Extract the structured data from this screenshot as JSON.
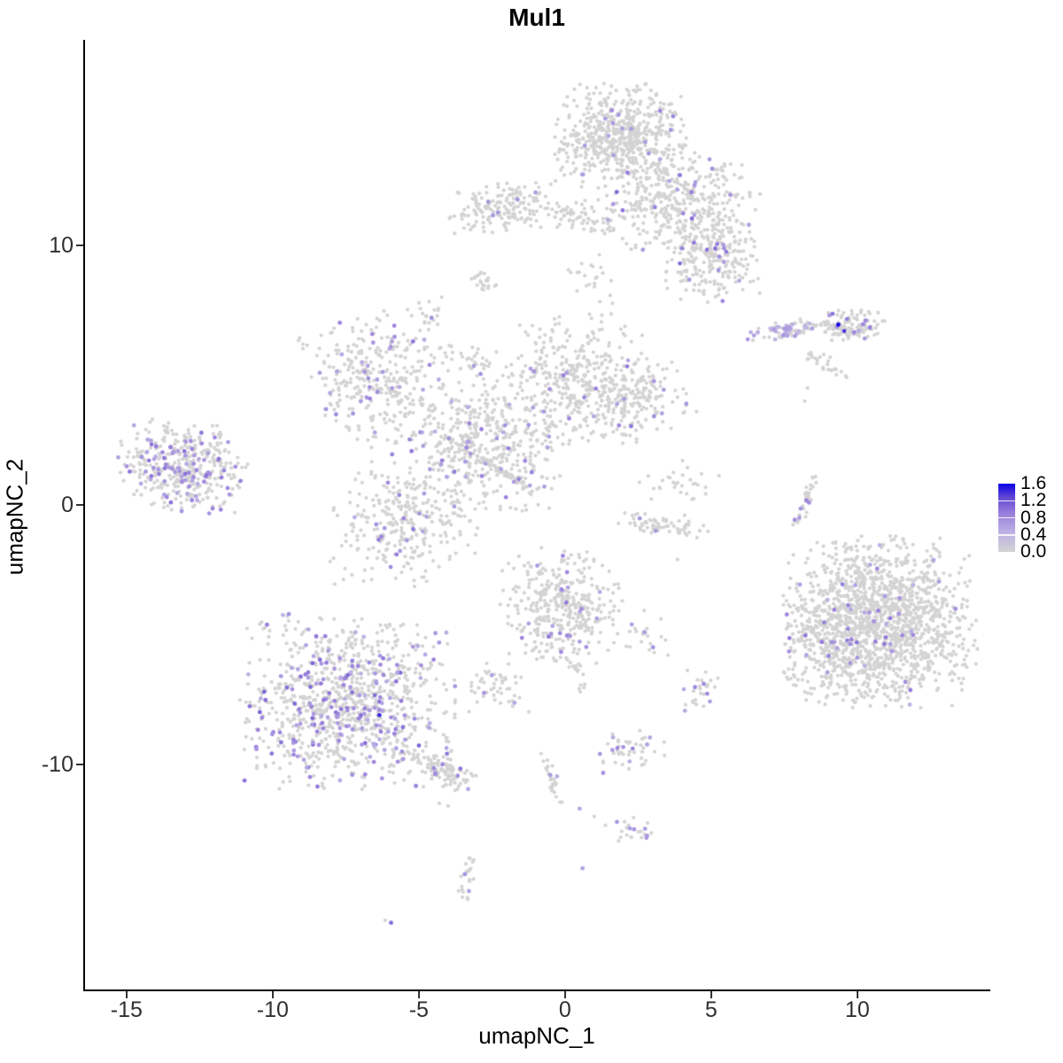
{
  "title": "Mul1",
  "axes": {
    "x_label": "umapNC_1",
    "y_label": "umapNC_2",
    "x_ticks": [
      -15,
      -10,
      -5,
      0,
      5,
      10
    ],
    "y_ticks": [
      -10,
      0,
      10
    ],
    "x_range": [
      -16.45,
      14.52
    ],
    "y_range": [
      -18.67,
      17.92
    ]
  },
  "legend": {
    "tick_labels": [
      "1.6",
      "1.2",
      "0.8",
      "0.4",
      "0.0"
    ],
    "tick_values": [
      1.6,
      1.2,
      0.8,
      0.4,
      0.0
    ],
    "vmax": 1.6,
    "low_color": "#d3d3d3",
    "high_color": "#0c00e8"
  },
  "chart_data": {
    "type": "scatter",
    "title": "Mul1",
    "xlabel": "umapNC_1",
    "ylabel": "umapNC_2",
    "grid": false,
    "legend_position": "right",
    "point_radius_base": 2.1,
    "point_radius_expr": 2.4,
    "base_color": "#d3d3d3",
    "color_stops": [
      [
        0,
        "#d3d3d3"
      ],
      [
        0.28,
        "#bdb2e4"
      ],
      [
        0.55,
        "#9b82dc"
      ],
      [
        0.8,
        "#6247d2"
      ],
      [
        1,
        "#0c00e8"
      ]
    ],
    "seed": 1234,
    "clusters": [
      {
        "id": "top-head",
        "cx": 1.9,
        "cy": 14.2,
        "sx": 1.05,
        "sy": 0.95,
        "rot": 0,
        "n": 600,
        "frac": 0.02,
        "vmin": 0.5,
        "vmax": 0.9
      },
      {
        "id": "top-body",
        "cx": 3.9,
        "cy": 11.6,
        "sx": 1.35,
        "sy": 1.05,
        "rot": -0.3,
        "n": 420,
        "frac": 0.05,
        "vmin": 0.5,
        "vmax": 1.1
      },
      {
        "id": "top-right-lobe",
        "cx": 5.1,
        "cy": 9.5,
        "sx": 0.8,
        "sy": 0.85,
        "rot": 0,
        "n": 220,
        "frac": 0.06,
        "vmin": 0.5,
        "vmax": 1.0
      },
      {
        "id": "top-left-arm",
        "cx": 0.7,
        "cy": 11.1,
        "sx": 0.75,
        "sy": 0.3,
        "rot": -0.15,
        "n": 70,
        "frac": 0.04,
        "vmin": 0.5,
        "vmax": 0.8
      },
      {
        "id": "below-head-sparse",
        "cx": 1.0,
        "cy": 8.9,
        "sx": 0.45,
        "sy": 0.6,
        "rot": 0,
        "n": 22,
        "frac": 0,
        "vmin": 0,
        "vmax": 0
      },
      {
        "id": "blob-nnw",
        "cx": -2.1,
        "cy": 11.5,
        "sx": 0.95,
        "sy": 0.45,
        "rot": 0.1,
        "n": 170,
        "frac": 0.015,
        "vmin": 0.6,
        "vmax": 0.8
      },
      {
        "id": "comma",
        "cx": -2.8,
        "cy": 8.6,
        "sx": 0.3,
        "sy": 0.14,
        "rot": -0.6,
        "n": 22,
        "frac": 0,
        "vmin": 0,
        "vmax": 0
      },
      {
        "id": "small-west",
        "cx": -4.6,
        "cy": 7.4,
        "sx": 0.38,
        "sy": 0.45,
        "rot": 0,
        "n": 20,
        "frac": 0.12,
        "vmin": 0.6,
        "vmax": 0.8
      },
      {
        "id": "nw-lobe",
        "cx": -6.6,
        "cy": 4.9,
        "sx": 1.0,
        "sy": 1.25,
        "rot": 0.35,
        "n": 300,
        "frac": 0.09,
        "vmin": 0.5,
        "vmax": 1.0
      },
      {
        "id": "nw-strand",
        "cx": -4.0,
        "cy": 5.8,
        "sx": 0.8,
        "sy": 0.25,
        "rot": -0.25,
        "n": 40,
        "frac": 0.06,
        "vmin": 0.5,
        "vmax": 0.8
      },
      {
        "id": "central-mass",
        "cx": -2.7,
        "cy": 2.5,
        "sx": 1.5,
        "sy": 1.4,
        "rot": 0,
        "n": 520,
        "frac": 0.05,
        "vmin": 0.45,
        "vmax": 0.95
      },
      {
        "id": "sw-lobe",
        "cx": -5.4,
        "cy": -0.8,
        "sx": 1.25,
        "sy": 1.15,
        "rot": 0,
        "n": 300,
        "frac": 0.08,
        "vmin": 0.5,
        "vmax": 1.0
      },
      {
        "id": "ne-lobe",
        "cx": 0.2,
        "cy": 4.9,
        "sx": 1.15,
        "sy": 1.15,
        "rot": 0,
        "n": 330,
        "frac": 0.05,
        "vmin": 0.5,
        "vmax": 1.0
      },
      {
        "id": "east-lobe",
        "cx": 2.2,
        "cy": 4.1,
        "sx": 0.95,
        "sy": 0.85,
        "rot": 0,
        "n": 200,
        "frac": 0.05,
        "vmin": 0.5,
        "vmax": 1.0
      },
      {
        "id": "streak",
        "cx": -2.1,
        "cy": 1.25,
        "sx": 0.62,
        "sy": 0.07,
        "rot": -0.6,
        "n": 45,
        "frac": 0.02,
        "vmin": 0.6,
        "vmax": 0.6
      },
      {
        "id": "far-left",
        "cx": -13.1,
        "cy": 1.4,
        "sx": 1.05,
        "sy": 0.85,
        "rot": -0.15,
        "n": 420,
        "frac": 0.22,
        "vmin": 0.5,
        "vmax": 1.0
      },
      {
        "id": "mid-right-left-seg",
        "cx": 7.5,
        "cy": 6.75,
        "sx": 0.68,
        "sy": 0.17,
        "rot": 0.1,
        "n": 70,
        "frac": 0.5,
        "vmin": 0.35,
        "vmax": 0.75
      },
      {
        "id": "mid-right-right-seg",
        "cx": 9.7,
        "cy": 6.9,
        "sx": 0.58,
        "sy": 0.3,
        "rot": 0,
        "n": 130,
        "frac": 0.08,
        "vmin": 0.5,
        "vmax": 1.0
      },
      {
        "id": "mid-right-tail",
        "cx": 8.8,
        "cy": 5.5,
        "sx": 0.5,
        "sy": 0.14,
        "rot": -0.5,
        "n": 25,
        "frac": 0,
        "vmin": 0,
        "vmax": 0
      },
      {
        "id": "strip",
        "cx": 8.25,
        "cy": 0.2,
        "sx": 0.6,
        "sy": 0.1,
        "rot": 1.26,
        "n": 35,
        "frac": 0.12,
        "vmin": 0.5,
        "vmax": 0.9
      },
      {
        "id": "c-arc",
        "cx": 3.3,
        "cy": -0.75,
        "sx": 0.8,
        "sy": 0.2,
        "rot": -0.1,
        "n": 70,
        "frac": 0.015,
        "vmin": 0.7,
        "vmax": 0.7
      },
      {
        "id": "c-upper",
        "cx": 3.8,
        "cy": 0.8,
        "sx": 0.7,
        "sy": 0.5,
        "rot": 0,
        "n": 30,
        "frac": 0,
        "vmin": 0,
        "vmax": 0
      },
      {
        "id": "center-low",
        "cx": -0.1,
        "cy": -3.9,
        "sx": 1.0,
        "sy": 1.05,
        "rot": 0,
        "n": 380,
        "frac": 0.06,
        "vmin": 0.5,
        "vmax": 1.0
      },
      {
        "id": "center-low-tail",
        "cx": 0.35,
        "cy": -6.3,
        "sx": 0.45,
        "sy": 0.1,
        "rot": -1.25,
        "n": 18,
        "frac": 0.06,
        "vmin": 0.6,
        "vmax": 0.8
      },
      {
        "id": "center-low-east",
        "cx": 2.7,
        "cy": -4.9,
        "sx": 0.4,
        "sy": 0.45,
        "rot": 0,
        "n": 22,
        "frac": 0.1,
        "vmin": 0.6,
        "vmax": 0.8
      },
      {
        "id": "small-left-low",
        "cx": -2.3,
        "cy": -7.0,
        "sx": 0.55,
        "sy": 0.5,
        "rot": 0,
        "n": 50,
        "frac": 0.13,
        "vmin": 0.5,
        "vmax": 0.9
      },
      {
        "id": "bottom-left-main",
        "cx": -7.5,
        "cy": -7.6,
        "sx": 1.75,
        "sy": 1.6,
        "rot": 0,
        "n": 1000,
        "frac": 0.2,
        "vmin": 0.45,
        "vmax": 1.1
      },
      {
        "id": "bottom-left-tail",
        "cx": -4.3,
        "cy": -10.2,
        "sx": 0.75,
        "sy": 0.25,
        "rot": -0.5,
        "n": 110,
        "frac": 0.09,
        "vmin": 0.5,
        "vmax": 1.0
      },
      {
        "id": "strand-bottom",
        "cx": -0.45,
        "cy": -10.6,
        "sx": 0.85,
        "sy": 0.1,
        "rot": -1.29,
        "n": 28,
        "frac": 0.12,
        "vmin": 0.5,
        "vmax": 0.7
      },
      {
        "id": "blob-low-right",
        "cx": 2.3,
        "cy": -9.5,
        "sx": 0.55,
        "sy": 0.42,
        "rot": 0,
        "n": 45,
        "frac": 0.17,
        "vmin": 0.5,
        "vmax": 0.9
      },
      {
        "id": "small-blob-bottom",
        "cx": 2.1,
        "cy": -12.5,
        "sx": 0.42,
        "sy": 0.28,
        "rot": 0,
        "n": 24,
        "frac": 0.12,
        "vmin": 0.6,
        "vmax": 0.75
      },
      {
        "id": "bottom-vertical",
        "cx": -3.4,
        "cy": -14.5,
        "sx": 0.6,
        "sy": 0.14,
        "rot": 1.35,
        "n": 24,
        "frac": 0.2,
        "vmin": 0.5,
        "vmax": 0.8
      },
      {
        "id": "blob-right5",
        "cx": 4.6,
        "cy": -7.2,
        "sx": 0.3,
        "sy": 0.42,
        "rot": 0,
        "n": 28,
        "frac": 0.25,
        "vmin": 0.5,
        "vmax": 0.9
      },
      {
        "id": "right-big",
        "cx": 10.8,
        "cy": -4.5,
        "sx": 1.55,
        "sy": 1.55,
        "rot": 0,
        "n": 1500,
        "frac": 0.035,
        "vmin": 0.45,
        "vmax": 1.0
      },
      {
        "id": "right-big-west",
        "cx": 9.2,
        "cy": -5.2,
        "sx": 0.8,
        "sy": 1.25,
        "rot": 0,
        "n": 160,
        "frac": 0.04,
        "vmin": 0.5,
        "vmax": 0.9
      }
    ],
    "extra_points": [
      {
        "x": 1.6,
        "y": 15.2,
        "v": 0.8
      },
      {
        "x": 9.35,
        "y": 6.95,
        "v": 1.6
      },
      {
        "x": 9.55,
        "y": 6.7,
        "v": 1.35
      },
      {
        "x": 8.2,
        "y": 4.0,
        "v": 0
      },
      {
        "x": 8.3,
        "y": 4.5,
        "v": 0
      },
      {
        "x": 4.15,
        "y": 3.9,
        "v": 0.7
      },
      {
        "x": 3.85,
        "y": 4.15,
        "v": 0
      },
      {
        "x": 4.5,
        "y": 3.6,
        "v": 0
      },
      {
        "x": -1.2,
        "y": 0.75,
        "v": 0.6
      },
      {
        "x": 3.1,
        "y": -1.0,
        "v": 0.7
      },
      {
        "x": 3.85,
        "y": -2.1,
        "v": 0
      },
      {
        "x": -6.35,
        "y": -8.1,
        "v": 1.45
      },
      {
        "x": -4.3,
        "y": -11.5,
        "v": 0
      },
      {
        "x": -4.0,
        "y": -11.6,
        "v": 0
      },
      {
        "x": 0.5,
        "y": -11.7,
        "v": 0.55
      },
      {
        "x": 1.0,
        "y": -12.0,
        "v": 0
      },
      {
        "x": 0.6,
        "y": -14.0,
        "v": 0.6
      },
      {
        "x": -6.15,
        "y": -16.0,
        "v": 0
      },
      {
        "x": -5.95,
        "y": -16.1,
        "v": 1.05
      }
    ]
  }
}
